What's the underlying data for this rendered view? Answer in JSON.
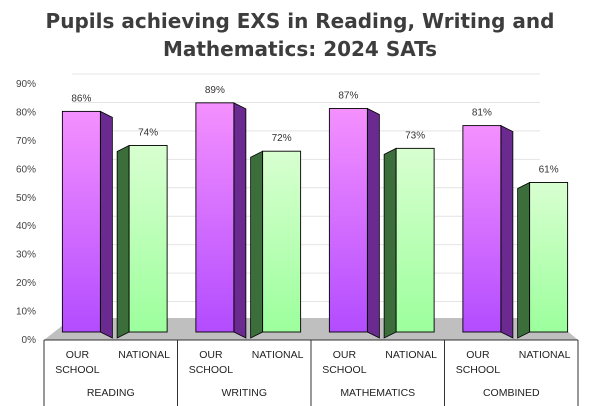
{
  "chart_data": {
    "type": "bar",
    "title_lines": [
      "Pupils achieving EXS in Reading, Writing and",
      "Mathematics: 2024 SATs"
    ],
    "groups": [
      "READING",
      "WRITING",
      "MATHEMATICS",
      "COMBINED"
    ],
    "categories": [
      {
        "group": "READING",
        "label_lines": [
          "OUR",
          "SCHOOL"
        ],
        "value": 86,
        "label": "86%"
      },
      {
        "group": "READING",
        "label_lines": [
          "NATIONAL"
        ],
        "value": 74,
        "label": "74%"
      },
      {
        "group": "WRITING",
        "label_lines": [
          "OUR",
          "SCHOOL"
        ],
        "value": 89,
        "label": "89%"
      },
      {
        "group": "WRITING",
        "label_lines": [
          "NATIONAL"
        ],
        "value": 72,
        "label": "72%"
      },
      {
        "group": "MATHEMATICS",
        "label_lines": [
          "OUR",
          "SCHOOL"
        ],
        "value": 87,
        "label": "87%"
      },
      {
        "group": "MATHEMATICS",
        "label_lines": [
          "NATIONAL"
        ],
        "value": 73,
        "label": "73%"
      },
      {
        "group": "COMBINED",
        "label_lines": [
          "OUR",
          "SCHOOL"
        ],
        "value": 81,
        "label": "81%"
      },
      {
        "group": "COMBINED",
        "label_lines": [
          "NATIONAL"
        ],
        "value": 61,
        "label": "61%"
      }
    ],
    "ylim": [
      0,
      90
    ],
    "yticks": [
      "0%",
      "10%",
      "20%",
      "30%",
      "40%",
      "50%",
      "60%",
      "70%",
      "80%",
      "90%"
    ],
    "grid": true,
    "colors": {
      "school_light": "#f590ff",
      "school_dark": "#b24cff",
      "school_side": "#6a2a8f",
      "national_light": "#d8ffd0",
      "national_dark": "#9cff9c",
      "national_side": "#3c6e3c",
      "floor": "#bfbfbf"
    }
  }
}
